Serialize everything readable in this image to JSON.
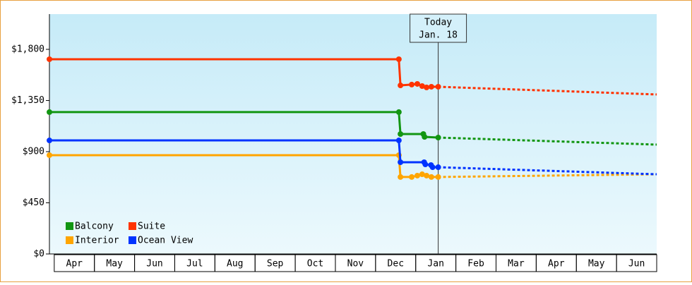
{
  "chart_data": {
    "type": "step-line",
    "xlim": [
      -0.12,
      15.0
    ],
    "ylim": [
      0,
      2110
    ],
    "yticks": [
      {
        "value": 0,
        "label": "$0"
      },
      {
        "value": 450,
        "label": "$450"
      },
      {
        "value": 900,
        "label": "$900"
      },
      {
        "value": 1350,
        "label": "$1,350"
      },
      {
        "value": 1800,
        "label": "$1,800"
      }
    ],
    "xticks": [
      {
        "value": 0.5,
        "label": "Apr"
      },
      {
        "value": 1.5,
        "label": "May"
      },
      {
        "value": 2.5,
        "label": "Jun"
      },
      {
        "value": 3.5,
        "label": "Jul"
      },
      {
        "value": 4.5,
        "label": "Aug"
      },
      {
        "value": 5.5,
        "label": "Sep"
      },
      {
        "value": 6.5,
        "label": "Oct"
      },
      {
        "value": 7.5,
        "label": "Nov"
      },
      {
        "value": 8.5,
        "label": "Dec"
      },
      {
        "value": 9.5,
        "label": "Jan"
      },
      {
        "value": 10.5,
        "label": "Feb"
      },
      {
        "value": 11.5,
        "label": "Mar"
      },
      {
        "value": 12.5,
        "label": "Apr"
      },
      {
        "value": 13.5,
        "label": "May"
      },
      {
        "value": 14.5,
        "label": "Jun"
      }
    ],
    "today": {
      "x": 9.56,
      "label": "Today",
      "date": "Jan. 18"
    },
    "legend": "lower left",
    "series": [
      {
        "name": "Balcony",
        "color": "#129612",
        "x": [
          -0.12,
          8.58,
          8.62,
          9.19,
          9.22,
          9.56
        ],
        "values": [
          1248,
          1248,
          1055,
          1055,
          1030,
          1024
        ],
        "forecast_x": [
          9.56,
          15.0
        ],
        "forecast_values": [
          1024,
          962
        ]
      },
      {
        "name": "Suite",
        "color": "#ff3300",
        "x": [
          -0.12,
          8.58,
          8.62,
          8.9,
          9.04,
          9.16,
          9.27,
          9.39,
          9.56
        ],
        "values": [
          1713,
          1713,
          1483,
          1490,
          1496,
          1477,
          1465,
          1471,
          1471
        ],
        "forecast_x": [
          9.56,
          15.0
        ],
        "forecast_values": [
          1471,
          1403
        ]
      },
      {
        "name": "Interior",
        "color": "#ffa500",
        "x": [
          -0.12,
          8.58,
          8.62,
          8.9,
          9.04,
          9.16,
          9.27,
          9.39,
          9.56
        ],
        "values": [
          869,
          869,
          677,
          677,
          689,
          701,
          689,
          677,
          677
        ],
        "forecast_x": [
          9.56,
          15.0
        ],
        "forecast_values": [
          677,
          701
        ]
      },
      {
        "name": "Ocean View",
        "color": "#0033ff",
        "x": [
          -0.12,
          8.58,
          8.62,
          9.21,
          9.24,
          9.38,
          9.42,
          9.56
        ],
        "values": [
          999,
          999,
          807,
          807,
          788,
          782,
          763,
          763
        ],
        "forecast_x": [
          9.56,
          15.0
        ],
        "forecast_values": [
          763,
          701
        ]
      }
    ]
  }
}
